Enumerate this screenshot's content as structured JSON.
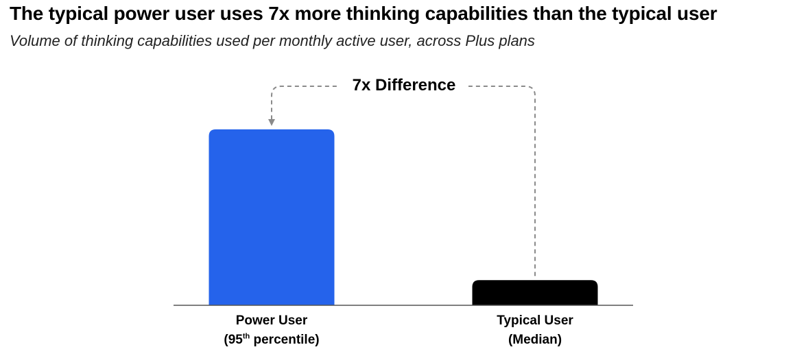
{
  "title": "The typical power user uses 7x more thinking capabilities than the typical user",
  "subtitle": "Volume of thinking capabilities used per monthly active user, across Plus plans",
  "chart_data": {
    "type": "bar",
    "categories": [
      "Power User (95th percentile)",
      "Typical User (Median)"
    ],
    "category_labels": [
      {
        "line1": "Power User",
        "line2_pre": "(95",
        "line2_sup": "th",
        "line2_post": " percentile)"
      },
      {
        "line1": "Typical User",
        "line2_pre": "(Median)",
        "line2_sup": "",
        "line2_post": ""
      }
    ],
    "values": [
      7,
      1
    ],
    "colors": [
      "#2563EB",
      "#000000"
    ],
    "ylim": [
      0,
      7
    ],
    "annotation": "7x Difference",
    "grid": false
  }
}
